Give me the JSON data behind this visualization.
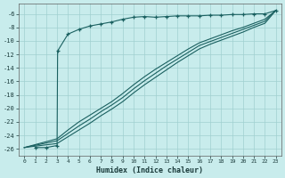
{
  "xlabel": "Humidex (Indice chaleur)",
  "bg_color": "#c8ecec",
  "grid_color": "#a0d0d0",
  "line_color": "#1a6060",
  "xlim": [
    -0.5,
    23.5
  ],
  "ylim": [
    -27,
    -4.5
  ],
  "yticks": [
    -26,
    -24,
    -22,
    -20,
    -18,
    -16,
    -14,
    -12,
    -10,
    -8,
    -6
  ],
  "xticks": [
    0,
    1,
    2,
    3,
    4,
    5,
    6,
    7,
    8,
    9,
    10,
    11,
    12,
    13,
    14,
    15,
    16,
    17,
    18,
    19,
    20,
    21,
    22,
    23
  ],
  "curve_x": [
    1,
    2,
    3,
    3.05,
    4,
    5,
    6,
    7,
    8,
    9,
    10,
    11,
    12,
    13,
    14,
    15,
    16,
    17,
    18,
    19,
    20,
    21,
    22,
    23
  ],
  "curve_y": [
    -25.8,
    -25.8,
    -25.5,
    -11.5,
    -9.0,
    -8.3,
    -7.8,
    -7.5,
    -7.2,
    -6.8,
    -6.5,
    -6.4,
    -6.5,
    -6.4,
    -6.3,
    -6.3,
    -6.3,
    -6.2,
    -6.2,
    -6.1,
    -6.1,
    -6.0,
    -6.0,
    -5.5
  ],
  "diag1_x": [
    0,
    3,
    4,
    5,
    6,
    7,
    8,
    9,
    10,
    11,
    12,
    13,
    14,
    15,
    16,
    17,
    18,
    19,
    20,
    21,
    22,
    23
  ],
  "diag1_y": [
    -25.8,
    -24.5,
    -23.2,
    -22.0,
    -21.0,
    -20.0,
    -19.0,
    -17.8,
    -16.5,
    -15.3,
    -14.2,
    -13.2,
    -12.2,
    -11.2,
    -10.3,
    -9.7,
    -9.1,
    -8.5,
    -8.0,
    -7.4,
    -6.8,
    -5.5
  ],
  "diag2_x": [
    0,
    3,
    4,
    5,
    6,
    7,
    8,
    9,
    10,
    11,
    12,
    13,
    14,
    15,
    16,
    17,
    18,
    19,
    20,
    21,
    22,
    23
  ],
  "diag2_y": [
    -25.8,
    -24.8,
    -23.7,
    -22.6,
    -21.6,
    -20.5,
    -19.5,
    -18.4,
    -17.1,
    -15.9,
    -14.8,
    -13.7,
    -12.7,
    -11.7,
    -10.7,
    -10.1,
    -9.5,
    -8.9,
    -8.3,
    -7.7,
    -7.1,
    -5.5
  ],
  "diag3_x": [
    0,
    3,
    4,
    5,
    6,
    7,
    8,
    9,
    10,
    11,
    12,
    13,
    14,
    15,
    16,
    17,
    18,
    19,
    20,
    21,
    22,
    23
  ],
  "diag3_y": [
    -25.8,
    -25.2,
    -24.2,
    -23.2,
    -22.2,
    -21.1,
    -20.1,
    -19.0,
    -17.7,
    -16.5,
    -15.4,
    -14.3,
    -13.2,
    -12.2,
    -11.2,
    -10.5,
    -9.9,
    -9.3,
    -8.7,
    -8.0,
    -7.4,
    -5.5
  ]
}
